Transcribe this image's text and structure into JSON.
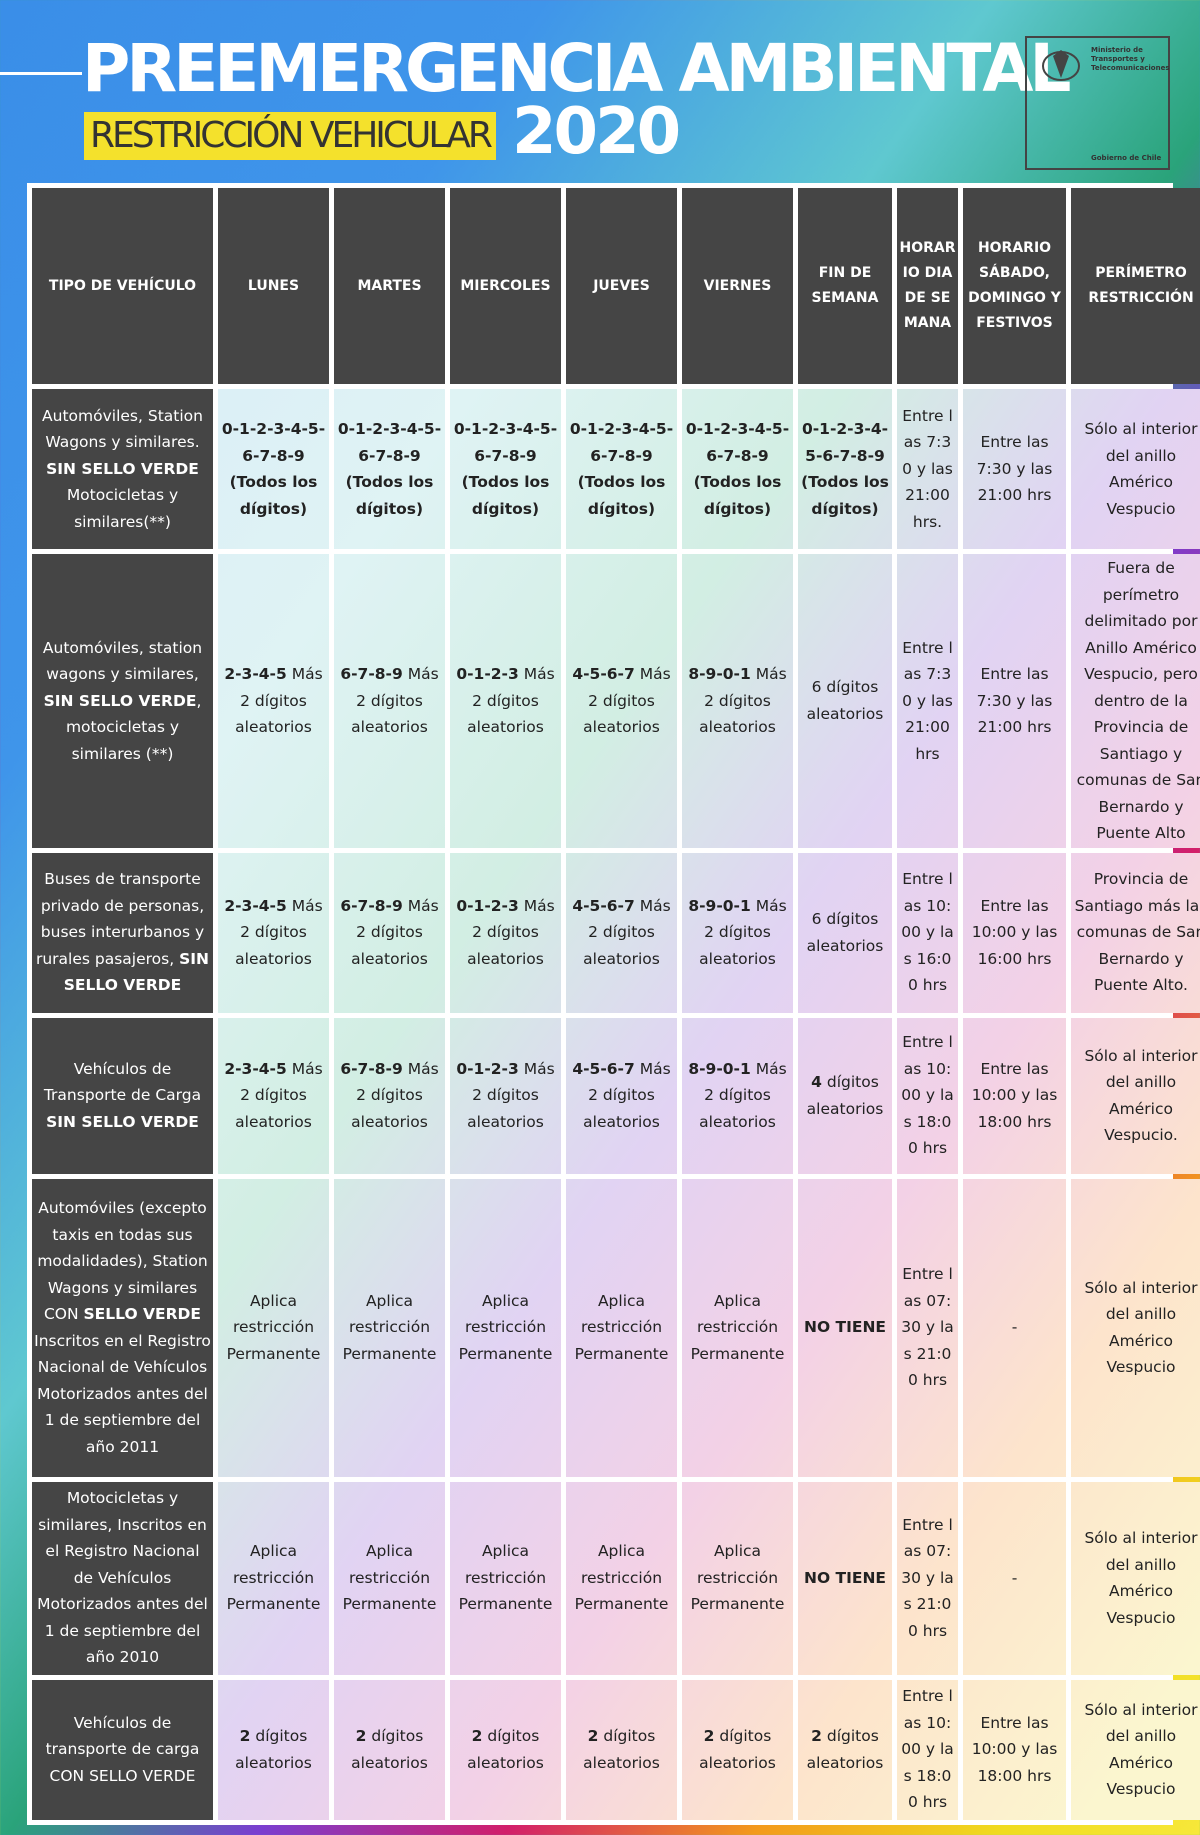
{
  "header": {
    "title": "PREEMERGENCIA AMBIENTAL",
    "subtitle": "RESTRICCIÓN VEHICULAR",
    "year": "2020",
    "ministry": "Ministerio de Transportes y Telecomunicaciones",
    "government": "Gobierno de Chile"
  },
  "table": {
    "headers": [
      "TIPO DE VEHÍCULO",
      "LUNES",
      "MARTES",
      "MIERCOLES",
      "JUEVES",
      "VIERNES",
      "FIN DE SEMANA",
      "HORARIO DIA DE SEMANA",
      "HORARIO SÁBADO, DOMINGO Y FESTIVOS",
      "PERÍMETRO RESTRICCIÓN"
    ],
    "rows": [
      [
        [
          "Automóviles, Station Wagons y similares. ",
          {
            "text": "SIN SELLO VERDE",
            "bold": true
          },
          " Motocicletas y similares(**)"
        ],
        [
          {
            "text": "0-1-2-3-4-5-6-7-8-9 (Todos los dígitos)",
            "bold": true
          }
        ],
        [
          {
            "text": "0-1-2-3-4-5-6-7-8-9 (Todos los dígitos)",
            "bold": true
          }
        ],
        [
          {
            "text": "0-1-2-3-4-5-6-7-8-9 (Todos los dígitos)",
            "bold": true
          }
        ],
        [
          {
            "text": "0-1-2-3-4-5-6-7-8-9 (Todos los dígitos)",
            "bold": true
          }
        ],
        [
          {
            "text": "0-1-2-3-4-5-6-7-8-9 (Todos los dígitos)",
            "bold": true
          }
        ],
        [
          {
            "text": "0-1-2-3-4-5-6-7-8-9 (Todos los dígitos)",
            "bold": true
          }
        ],
        [
          "Entre las 7:30 y las 21:00 hrs."
        ],
        [
          "Entre las 7:30 y las 21:00 hrs"
        ],
        [
          "Sólo al interior del anillo Américo Vespucio"
        ]
      ],
      [
        [
          "Automóviles, station wagons y similares, ",
          {
            "text": "SIN SELLO VERDE",
            "bold": true
          },
          ", motocicletas y similares (**)"
        ],
        [
          {
            "text": "2-3-4-5",
            "bold": true
          },
          " Más 2 dígitos aleatorios"
        ],
        [
          {
            "text": "6-7-8-9",
            "bold": true
          },
          " Más 2 dígitos aleatorios"
        ],
        [
          {
            "text": "0-1-2-3",
            "bold": true
          },
          " Más 2 dígitos aleatorios"
        ],
        [
          {
            "text": "4-5-6-7",
            "bold": true
          },
          " Más 2 dígitos aleatorios"
        ],
        [
          {
            "text": "8-9-0-1",
            "bold": true
          },
          " Más 2 dígitos aleatorios"
        ],
        [
          "6 dígitos aleatorios"
        ],
        [
          "Entre las 7:30 y las 21:00 hrs"
        ],
        [
          "Entre las 7:30 y las 21:00 hrs"
        ],
        [
          "Fuera de perímetro delimitado por Anillo Américo Vespucio, pero dentro de la Provincia de Santiago y comunas de San Bernardo y Puente Alto"
        ]
      ],
      [
        [
          "Buses de transporte privado de personas, buses interurbanos y rurales pasajeros, ",
          {
            "text": "SIN SELLO VERDE",
            "bold": true
          }
        ],
        [
          {
            "text": "2-3-4-5",
            "bold": true
          },
          " Más 2 dígitos aleatorios"
        ],
        [
          {
            "text": "6-7-8-9",
            "bold": true
          },
          " Más 2 dígitos aleatorios"
        ],
        [
          {
            "text": "0-1-2-3",
            "bold": true
          },
          " Más 2 dígitos aleatorios"
        ],
        [
          {
            "text": "4-5-6-7",
            "bold": true
          },
          " Más 2 dígitos aleatorios"
        ],
        [
          {
            "text": "8-9-0-1",
            "bold": true
          },
          " Más 2 dígitos aleatorios"
        ],
        [
          "6 dígitos aleatorios"
        ],
        [
          "Entre las 10:00 y las 16:00 hrs"
        ],
        [
          "Entre las 10:00 y las 16:00 hrs"
        ],
        [
          "Provincia de Santiago más las comunas de San Bernardo y Puente Alto."
        ]
      ],
      [
        [
          "Vehículos de Transporte de Carga ",
          {
            "text": "SIN SELLO VERDE",
            "bold": true
          }
        ],
        [
          {
            "text": "2-3-4-5",
            "bold": true
          },
          " Más 2 dígitos aleatorios"
        ],
        [
          {
            "text": "6-7-8-9",
            "bold": true
          },
          " Más 2 dígitos aleatorios"
        ],
        [
          {
            "text": "0-1-2-3",
            "bold": true
          },
          " Más 2 dígitos aleatorios"
        ],
        [
          {
            "text": "4-5-6-7",
            "bold": true
          },
          " Más 2 dígitos aleatorios"
        ],
        [
          {
            "text": "8-9-0-1",
            "bold": true
          },
          " Más 2 dígitos aleatorios"
        ],
        [
          {
            "text": "4",
            "bold": true
          },
          " dígitos aleatorios"
        ],
        [
          "Entre las 10:00 y las 18:00 hrs"
        ],
        [
          "Entre las 10:00 y las 18:00 hrs"
        ],
        [
          "Sólo al interior del anillo Américo Vespucio."
        ]
      ],
      [
        [
          "Automóviles (excepto taxis en todas sus modalidades), Station Wagons y similares CON ",
          {
            "text": "SELLO VERDE",
            "bold": true
          },
          " Inscritos en el Registro Nacional de Vehículos Motorizados antes del 1 de septiembre del año 2011"
        ],
        [
          "Aplica restricción Permanente"
        ],
        [
          "Aplica restricción Permanente"
        ],
        [
          "Aplica restricción Permanente"
        ],
        [
          "Aplica restricción Permanente"
        ],
        [
          "Aplica restricción Permanente"
        ],
        [
          {
            "text": "NO TIENE",
            "bold": true
          }
        ],
        [
          "Entre las 07:30 y las 21:00 hrs"
        ],
        [
          "-"
        ],
        [
          "Sólo al interior del anillo Américo Vespucio"
        ]
      ],
      [
        [
          "Motocicletas y similares, Inscritos en el Registro Nacional de Vehículos Motorizados antes del 1 de septiembre del año 2010"
        ],
        [
          "Aplica restricción Permanente"
        ],
        [
          "Aplica restricción Permanente"
        ],
        [
          "Aplica restricción Permanente"
        ],
        [
          "Aplica restricción Permanente"
        ],
        [
          "Aplica restricción Permanente"
        ],
        [
          {
            "text": "NO TIENE",
            "bold": true
          }
        ],
        [
          "Entre las 07:30 y las 21:00 hrs"
        ],
        [
          "-"
        ],
        [
          "Sólo al interior del anillo Américo Vespucio"
        ]
      ],
      [
        [
          "Vehículos de transporte de carga CON SELLO VERDE"
        ],
        [
          {
            "text": "2",
            "bold": true
          },
          " dígitos aleatorios"
        ],
        [
          {
            "text": "2",
            "bold": true
          },
          " dígitos aleatorios"
        ],
        [
          {
            "text": "2",
            "bold": true
          },
          " dígitos aleatorios"
        ],
        [
          {
            "text": "2",
            "bold": true
          },
          " dígitos aleatorios"
        ],
        [
          {
            "text": "2",
            "bold": true
          },
          " dígitos aleatorios"
        ],
        [
          {
            "text": "2",
            "bold": true
          },
          " dígitos aleatorios"
        ],
        [
          "Entre las 10:00 y las 18:00 hrs"
        ],
        [
          "Entre las 10:00 y las 18:00 hrs"
        ],
        [
          "Sólo al interior del anillo Américo Vespucio"
        ]
      ]
    ]
  }
}
